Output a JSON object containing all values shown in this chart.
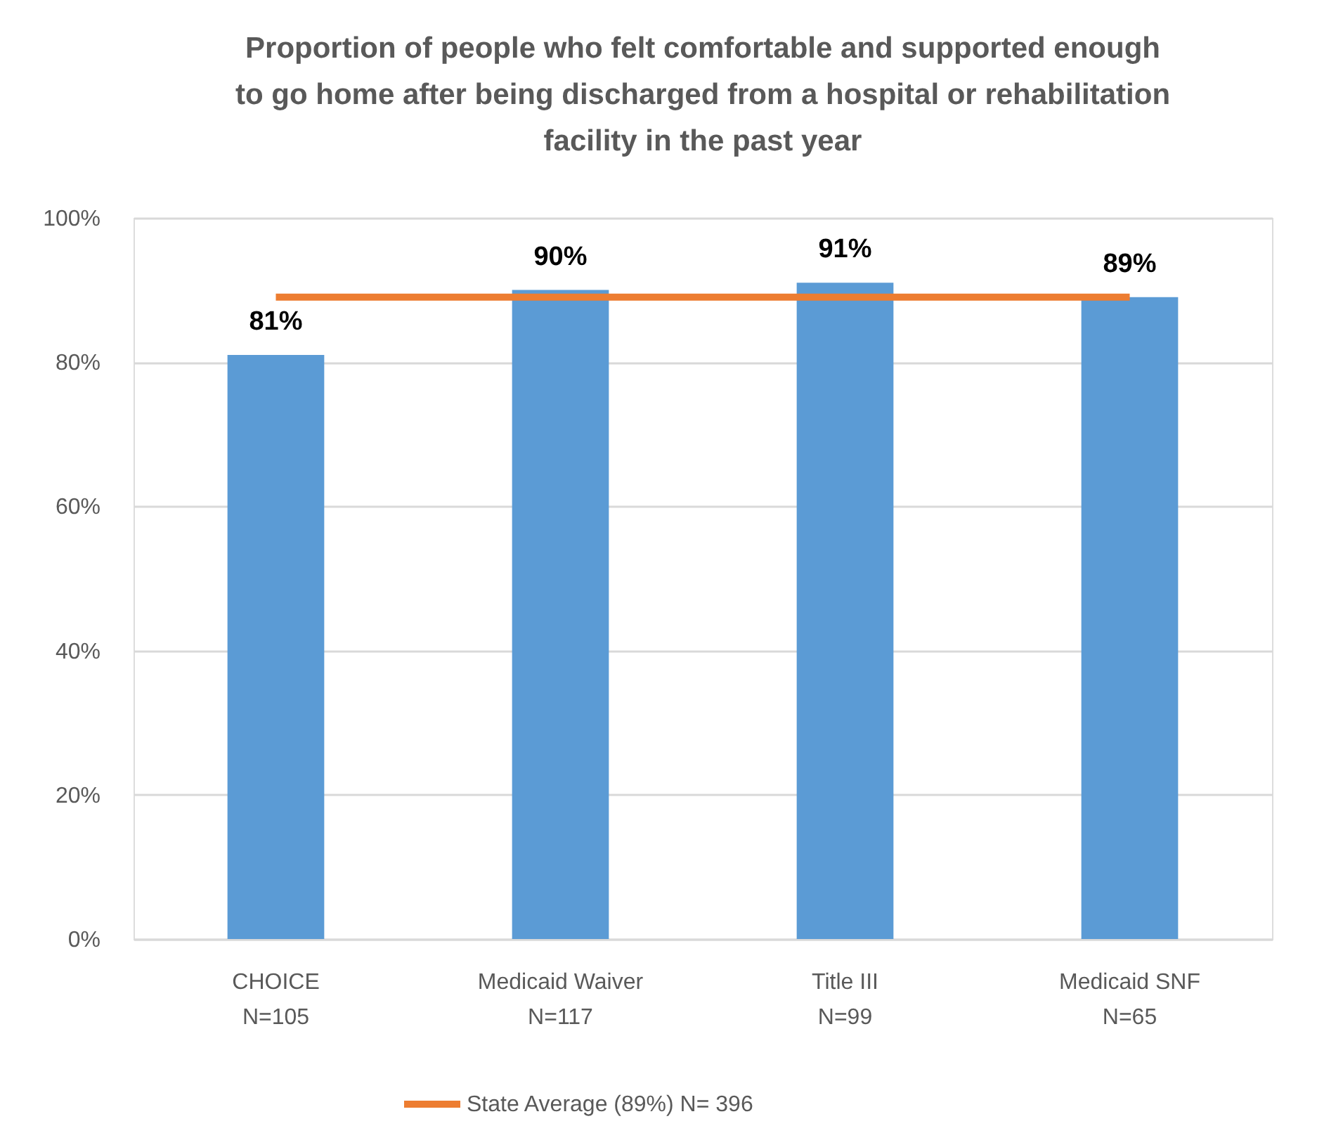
{
  "chart_data": {
    "type": "bar",
    "title": "Proportion of people who felt comfortable and supported enough\nto go home after being discharged from a hospital or rehabilitation\nfacility in the past year",
    "categories": [
      "CHOICE\nN=105",
      "Medicaid Waiver\nN=117",
      "Title III\nN=99",
      "Medicaid SNF\nN=65"
    ],
    "series": [
      {
        "color": "#5b9bd5",
        "values": [
          81,
          90,
          91,
          89
        ],
        "value_labels": [
          "81%",
          "90%",
          "91%",
          "89%"
        ]
      },
      {
        "type": "line",
        "name": "State Average (89%) N= 396",
        "color": "#ed7d31",
        "values": [
          89,
          89,
          89,
          89
        ]
      }
    ],
    "ylim": [
      0,
      100
    ],
    "yticks": [
      {
        "value": 0,
        "label": "0%"
      },
      {
        "value": 20,
        "label": "20%"
      },
      {
        "value": 40,
        "label": "40%"
      },
      {
        "value": 60,
        "label": "60%"
      },
      {
        "value": 80,
        "label": "80%"
      },
      {
        "value": 100,
        "label": "100%"
      }
    ],
    "grid": "y",
    "legend": "bottom"
  }
}
